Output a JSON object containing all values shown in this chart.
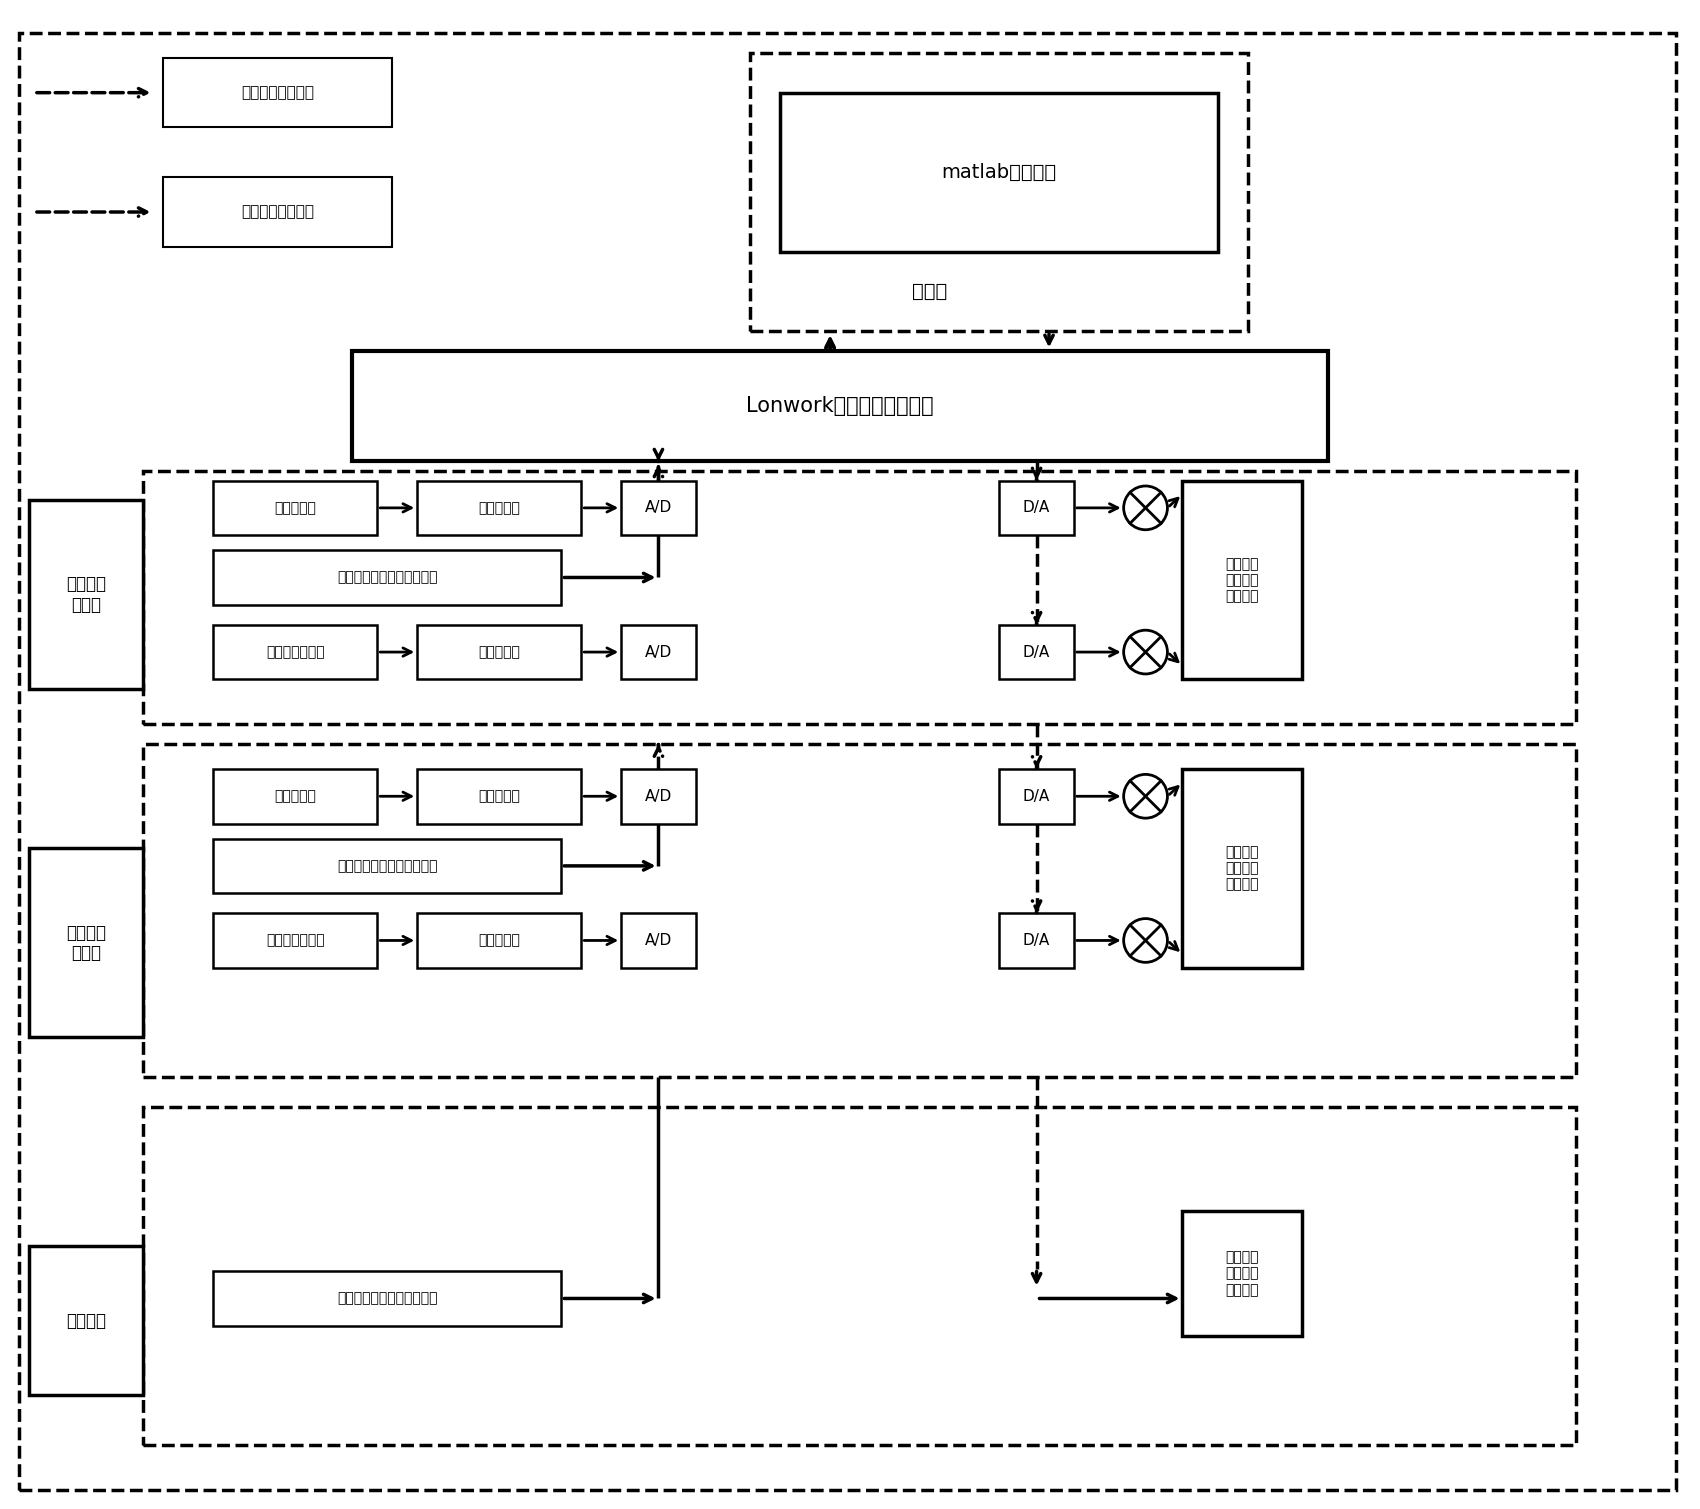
{
  "fig_width": 17.0,
  "fig_height": 15.09,
  "bg_color": "#ffffff",
  "legend1_label": "状态数据采集模块",
  "legend2_label": "控制信号作用模块",
  "matlab_label": "matlab优化程序",
  "danpian_label": "单片机",
  "lonwork_label": "Lonwork制冷系统监控平台",
  "group1_label": "冷冻水泵\n设备组",
  "group2_label": "冷却水泵\n设备组",
  "group3_label": "制冷机组",
  "row1_box1": "冷冻水流量",
  "row1_box2": "流量传感器",
  "row1_box3": "A/D",
  "row2_box1": "冷冻水泵开启状态和负荷率",
  "row3_box1": "冷冻水出口温度",
  "row3_box2": "温度传感器",
  "row3_box3": "A/D",
  "da_label": "D/A",
  "out1_label": "冷冻水泵\n开启状态\n和负荷率",
  "sec2_row1_box1": "冷却水流量",
  "sec2_row1_box2": "流量传感器",
  "sec2_row1_box3": "A/D",
  "sec2_row2_box1": "冷却水泵开启状态和负荷率",
  "sec2_row3_box1": "冷却水入口温度",
  "sec2_row3_box2": "流量传感器",
  "sec2_row3_box3": "A/D",
  "out2_label": "冷却水泵\n开启状态\n和负荷率",
  "sec3_row1_box1": "制冷机组开启状态和负荷率",
  "out3_label": "制冷机组\n开启状态\n和负荷率"
}
